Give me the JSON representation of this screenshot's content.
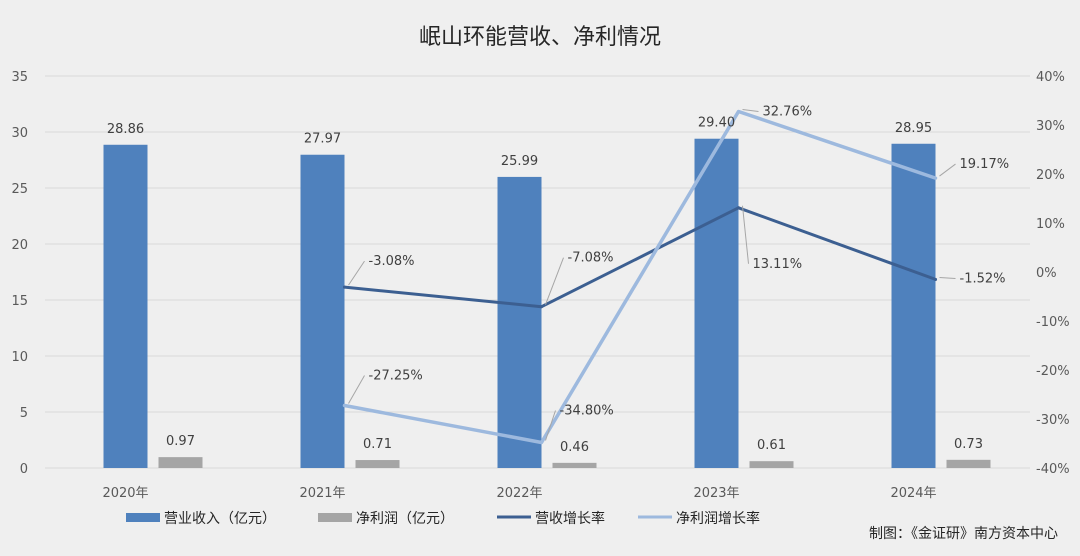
{
  "chart_data": {
    "type": "bar",
    "title": "岷山环能营收、净利情况",
    "categories": [
      "2020年",
      "2021年",
      "2022年",
      "2023年",
      "2024年"
    ],
    "y_left": {
      "ticks": [
        "0",
        "5",
        "10",
        "15",
        "20",
        "25",
        "30",
        "35"
      ],
      "ylim": [
        0,
        35
      ]
    },
    "y_right": {
      "ticks": [
        "-40%",
        "-30%",
        "-20%",
        "-10%",
        "0%",
        "10%",
        "20%",
        "30%",
        "40%"
      ],
      "ylim": [
        -40,
        40
      ]
    },
    "bar_series": [
      {
        "name": "营业收入（亿元）",
        "color": "#4f81bd",
        "values": [
          28.86,
          27.97,
          25.99,
          29.4,
          28.95
        ],
        "labels": [
          "28.86",
          "27.97",
          "25.99",
          "29.40",
          "28.95"
        ]
      },
      {
        "name": "净利润（亿元）",
        "color": "#a5a5a5",
        "values": [
          0.97,
          0.71,
          0.46,
          0.61,
          0.73
        ],
        "labels": [
          "0.97",
          "0.71",
          "0.46",
          "0.61",
          "0.73"
        ]
      }
    ],
    "line_series": [
      {
        "name": "营收增长率",
        "color": "#3c5f91",
        "values": [
          null,
          -3.08,
          -7.08,
          13.11,
          -1.52
        ],
        "labels": [
          "",
          "-3.08%",
          "-7.08%",
          "13.11%",
          "-1.52%"
        ]
      },
      {
        "name": "净利润增长率",
        "color": "#9db9de",
        "values": [
          null,
          -27.25,
          -34.8,
          32.76,
          19.17
        ],
        "labels": [
          "",
          "-27.25%",
          "-34.80%",
          "32.76%",
          "19.17%"
        ]
      }
    ],
    "grid": true,
    "legend": "bottom",
    "credit": "制图：《金证研》南方资本中心"
  }
}
